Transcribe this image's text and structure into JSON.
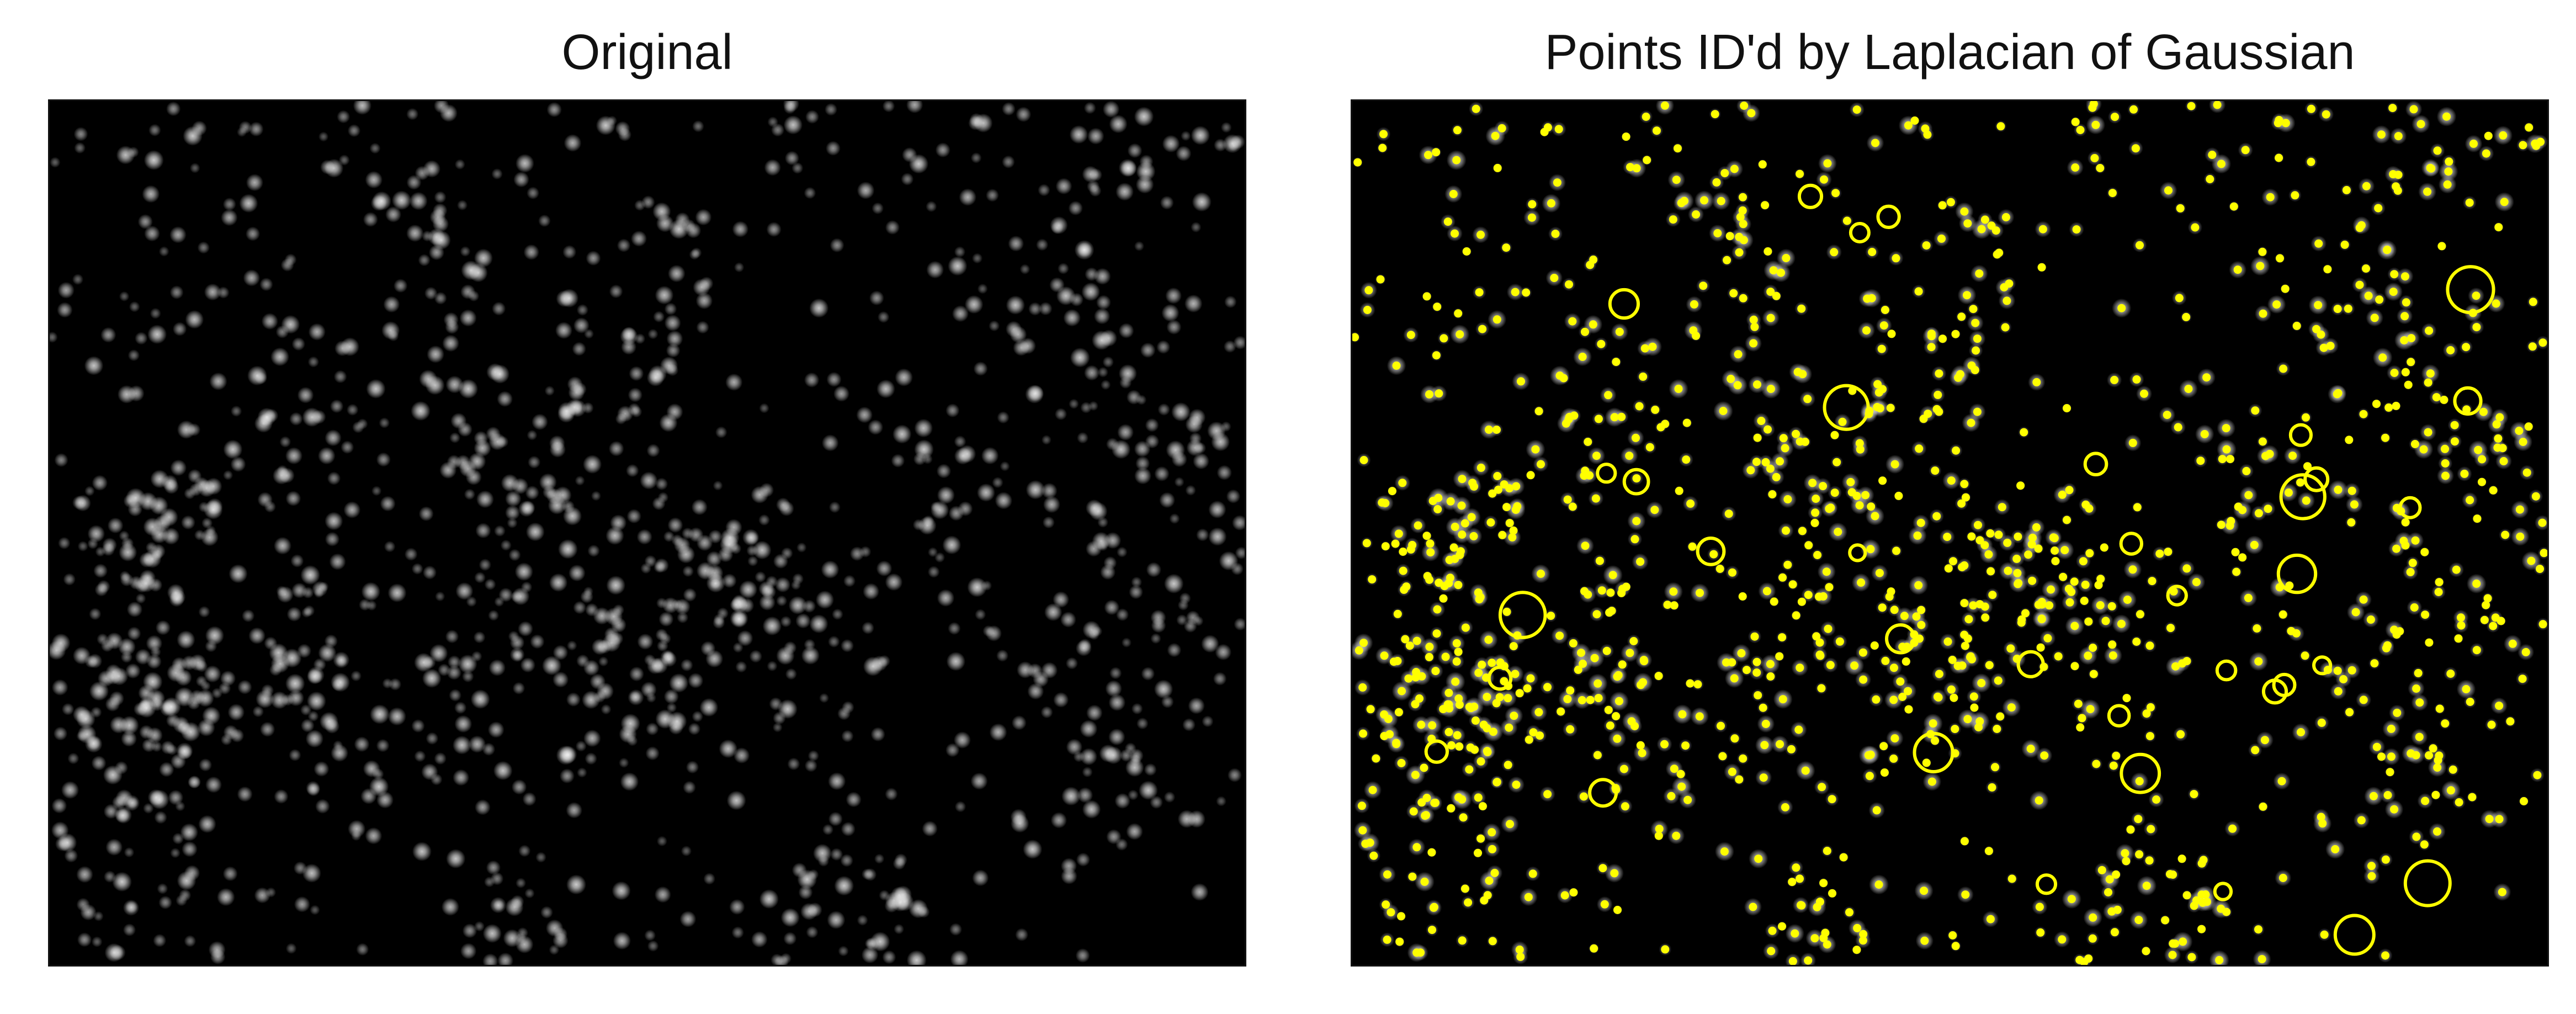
{
  "figure": {
    "panels": [
      {
        "title": "Original",
        "content": "fluorescence-spots-image"
      },
      {
        "title": "Points ID'd by Laplacian of Gaussian",
        "content": "detected-points-overlay"
      }
    ]
  },
  "colors": {
    "background": "#ffffff",
    "image_background": "#000000",
    "spot_color": "#ffffff",
    "marker_color": "#ffff00",
    "title_color": "#111111"
  }
}
